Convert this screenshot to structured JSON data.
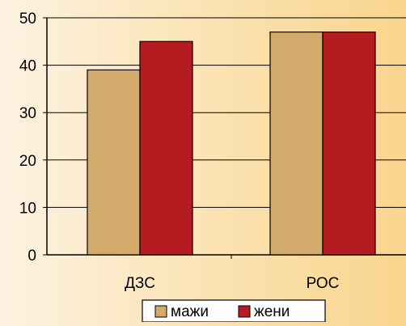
{
  "chart_data": {
    "type": "bar",
    "categories": [
      "ДЗС",
      "РОС"
    ],
    "series": [
      {
        "name": "мажи",
        "values": [
          39,
          47
        ],
        "color": "#d2aa6b"
      },
      {
        "name": "жени",
        "values": [
          45,
          47
        ],
        "color": "#b41c22"
      }
    ],
    "ylim": [
      0,
      50
    ],
    "yticks": [
      0,
      10,
      20,
      30,
      40,
      50
    ],
    "grid": true,
    "legend": "bottom",
    "title": "",
    "xlabel": "",
    "ylabel": ""
  }
}
